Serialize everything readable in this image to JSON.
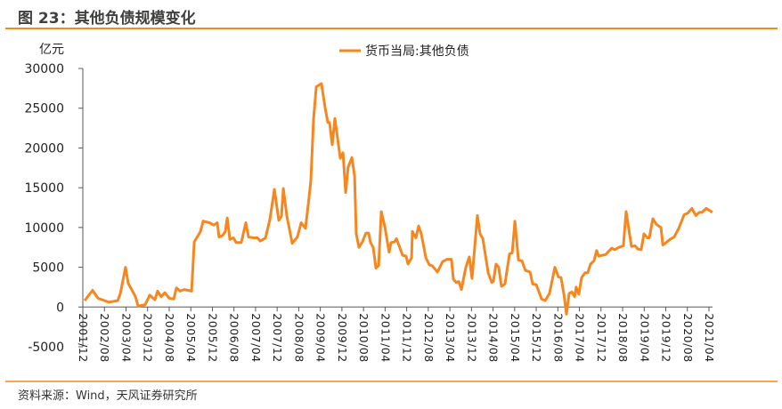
{
  "header": {
    "title": "图 23：其他负债规模变化"
  },
  "footer": {
    "source": "资料来源：Wind，天风证券研究所"
  },
  "colors": {
    "accent": "#F08A24",
    "line": "#F7861F",
    "axis": "#595959"
  },
  "chart_data": {
    "type": "line",
    "title": "其他负债规模变化",
    "ylabel": "亿元",
    "xlabel": "",
    "ylim": [
      -5000,
      30000
    ],
    "yticks": [
      30000,
      25000,
      20000,
      15000,
      10000,
      5000,
      0,
      -5000
    ],
    "ytick_labels": [
      "30000",
      "25000",
      "20000",
      "15000",
      "10000",
      "5000",
      "0",
      "-5000"
    ],
    "x_unit": "months since 2001/12",
    "xlim": [
      0,
      232
    ],
    "xticks": [
      "2001/12",
      "2002/08",
      "2003/04",
      "2003/12",
      "2004/08",
      "2005/04",
      "2005/12",
      "2006/08",
      "2007/04",
      "2007/12",
      "2008/08",
      "2009/04",
      "2009/12",
      "2010/08",
      "2011/04",
      "2011/12",
      "2012/08",
      "2013/04",
      "2013/12",
      "2014/08",
      "2015/04",
      "2015/12",
      "2016/08",
      "2017/04",
      "2017/12",
      "2018/08",
      "2019/04",
      "2019/12",
      "2020/08",
      "2021/04"
    ],
    "xtick_step_months": 8,
    "grid": false,
    "legend": {
      "position": "top-center",
      "entries": [
        "货币当局:其他负债"
      ]
    },
    "series": [
      {
        "name": "货币当局:其他负债",
        "points": [
          [
            0.7,
            800
          ],
          [
            3.6,
            2100
          ],
          [
            5.6,
            1100
          ],
          [
            9.6,
            600
          ],
          [
            12.9,
            800
          ],
          [
            13.9,
            1700
          ],
          [
            15.8,
            5000
          ],
          [
            16.8,
            3000
          ],
          [
            19.5,
            1300
          ],
          [
            20.5,
            100
          ],
          [
            23.1,
            300
          ],
          [
            24.8,
            1500
          ],
          [
            26.7,
            900
          ],
          [
            27.7,
            2000
          ],
          [
            29.0,
            1300
          ],
          [
            30.4,
            1800
          ],
          [
            32.0,
            1100
          ],
          [
            33.7,
            1000
          ],
          [
            34.7,
            2400
          ],
          [
            36.0,
            2000
          ],
          [
            37.6,
            2200
          ],
          [
            40.3,
            2000
          ],
          [
            41.3,
            8200
          ],
          [
            43.6,
            9500
          ],
          [
            44.6,
            10800
          ],
          [
            46.9,
            10600
          ],
          [
            48.5,
            10300
          ],
          [
            49.8,
            10600
          ],
          [
            50.5,
            8800
          ],
          [
            51.8,
            9000
          ],
          [
            52.8,
            9500
          ],
          [
            53.5,
            11200
          ],
          [
            54.5,
            8500
          ],
          [
            55.8,
            8700
          ],
          [
            56.8,
            8100
          ],
          [
            58.7,
            8100
          ],
          [
            60.4,
            10600
          ],
          [
            61.4,
            8800
          ],
          [
            63.4,
            8700
          ],
          [
            64.7,
            8700
          ],
          [
            65.7,
            8300
          ],
          [
            67.3,
            8600
          ],
          [
            67.7,
            8700
          ],
          [
            69.3,
            11000
          ],
          [
            71.0,
            14800
          ],
          [
            72.6,
            10900
          ],
          [
            73.6,
            11400
          ],
          [
            74.3,
            14900
          ],
          [
            75.6,
            11400
          ],
          [
            77.6,
            8000
          ],
          [
            79.5,
            8800
          ],
          [
            80.9,
            10600
          ],
          [
            82.5,
            9900
          ],
          [
            83.8,
            13700
          ],
          [
            84.5,
            15900
          ],
          [
            85.5,
            23700
          ],
          [
            86.5,
            27700
          ],
          [
            88.4,
            28100
          ],
          [
            89.8,
            25000
          ],
          [
            90.8,
            23200
          ],
          [
            91.4,
            23200
          ],
          [
            92.4,
            20400
          ],
          [
            93.4,
            23700
          ],
          [
            95.4,
            18700
          ],
          [
            96.4,
            19400
          ],
          [
            97.4,
            14400
          ],
          [
            98.3,
            17600
          ],
          [
            99.7,
            18800
          ],
          [
            100.7,
            16500
          ],
          [
            101.3,
            9200
          ],
          [
            102.3,
            7500
          ],
          [
            103.6,
            8200
          ],
          [
            104.9,
            9300
          ],
          [
            105.9,
            9300
          ],
          [
            106.6,
            8100
          ],
          [
            107.6,
            7500
          ],
          [
            108.6,
            4900
          ],
          [
            109.6,
            5200
          ],
          [
            110.6,
            12000
          ],
          [
            111.9,
            10100
          ],
          [
            113.5,
            6900
          ],
          [
            114.2,
            8100
          ],
          [
            115.5,
            8200
          ],
          [
            116.2,
            8600
          ],
          [
            118.5,
            6500
          ],
          [
            119.8,
            6400
          ],
          [
            120.5,
            5400
          ],
          [
            121.8,
            6200
          ],
          [
            122.1,
            9500
          ],
          [
            123.4,
            8700
          ],
          [
            124.4,
            10200
          ],
          [
            125.4,
            9200
          ],
          [
            127.1,
            6200
          ],
          [
            128.4,
            5300
          ],
          [
            129.4,
            5200
          ],
          [
            131.4,
            4400
          ],
          [
            133.3,
            5700
          ],
          [
            135.0,
            6000
          ],
          [
            136.6,
            6000
          ],
          [
            137.3,
            3500
          ],
          [
            138.3,
            3100
          ],
          [
            139.3,
            3200
          ],
          [
            140.3,
            2200
          ],
          [
            141.9,
            5000
          ],
          [
            143.2,
            6300
          ],
          [
            144.2,
            3600
          ],
          [
            146.2,
            11500
          ],
          [
            147.2,
            9200
          ],
          [
            148.2,
            8600
          ],
          [
            150.2,
            4300
          ],
          [
            151.5,
            3100
          ],
          [
            152.1,
            3200
          ],
          [
            153.1,
            5400
          ],
          [
            154.1,
            5000
          ],
          [
            155.1,
            2600
          ],
          [
            156.4,
            2900
          ],
          [
            158.1,
            6700
          ],
          [
            159.1,
            6800
          ],
          [
            160.1,
            10800
          ],
          [
            161.4,
            5900
          ],
          [
            162.7,
            5800
          ],
          [
            164.0,
            4600
          ],
          [
            165.7,
            4400
          ],
          [
            166.7,
            2900
          ],
          [
            168.0,
            2800
          ],
          [
            170.0,
            1000
          ],
          [
            171.3,
            800
          ],
          [
            172.9,
            1700
          ],
          [
            174.9,
            5000
          ],
          [
            176.2,
            3800
          ],
          [
            177.2,
            3700
          ],
          [
            178.2,
            1700
          ],
          [
            179.2,
            -900
          ],
          [
            180.2,
            1700
          ],
          [
            181.2,
            1900
          ],
          [
            182.2,
            1300
          ],
          [
            182.8,
            2500
          ],
          [
            183.8,
            1600
          ],
          [
            184.8,
            3700
          ],
          [
            186.1,
            4300
          ],
          [
            187.1,
            4300
          ],
          [
            188.1,
            5400
          ],
          [
            189.4,
            5800
          ],
          [
            190.4,
            7100
          ],
          [
            191.1,
            6400
          ],
          [
            193.7,
            6600
          ],
          [
            196.0,
            7400
          ],
          [
            197.0,
            7200
          ],
          [
            198.7,
            7500
          ],
          [
            200.3,
            7700
          ],
          [
            201.3,
            12000
          ],
          [
            203.3,
            7600
          ],
          [
            204.6,
            7700
          ],
          [
            205.6,
            7300
          ],
          [
            206.9,
            7200
          ],
          [
            207.9,
            9200
          ],
          [
            209.2,
            8700
          ],
          [
            209.9,
            8700
          ],
          [
            211.2,
            11100
          ],
          [
            212.5,
            10400
          ],
          [
            214.2,
            10000
          ],
          [
            214.9,
            7800
          ],
          [
            215.8,
            8000
          ],
          [
            217.5,
            8500
          ],
          [
            219.1,
            8800
          ],
          [
            220.8,
            9900
          ],
          [
            222.8,
            11600
          ],
          [
            224.1,
            11800
          ],
          [
            225.7,
            12400
          ],
          [
            227.1,
            11500
          ],
          [
            228.4,
            11900
          ],
          [
            229.4,
            11900
          ],
          [
            231.0,
            12400
          ],
          [
            233.3,
            11900
          ]
        ]
      }
    ]
  }
}
